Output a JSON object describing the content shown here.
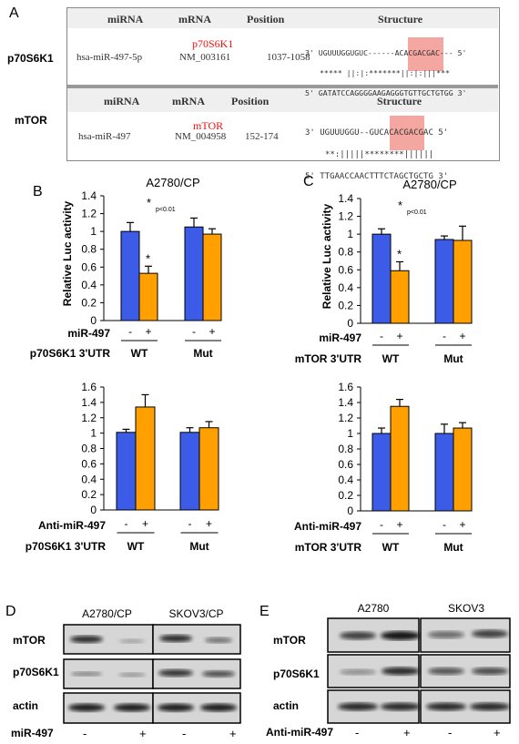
{
  "panels": {
    "A": "A",
    "B": "B",
    "C": "C",
    "D": "D",
    "E": "E"
  },
  "panel_a": {
    "headers": [
      "miRNA",
      "mRNA",
      "Position",
      "Structure"
    ],
    "rows": [
      {
        "gene": "p70S6K1",
        "mirna": "hsa-miR-497-5p",
        "mrna_name": "p70S6K1",
        "mrna_id": "NM_003161",
        "position": "1037-1058",
        "line1": "3' UGUUUGGUGUC------ACACGACGAC--- 5'",
        "line2": "***** ||:|:*******||:|:|||***",
        "line3": "5' GATATCCAGGGGAAGAGGGTGTTGCTGTGG 3'"
      },
      {
        "gene": "mTOR",
        "mirna": "hsa-miR-497",
        "mrna_name": "mTOR",
        "mrna_id": "NM_004958",
        "position": "152-174",
        "line1": "3' UGUUUGGU--GUCACACGACGAC 5'",
        "line2": "**:|||||********||||||",
        "line3": "5' TTGAACCAACTTTCTAGCTGCTG 3'"
      }
    ],
    "highlight_color": "#f4a6a0"
  },
  "colors": {
    "blue": "#3c5ce8",
    "orange": "#ffa000"
  },
  "chart_data": [
    {
      "panel": "B",
      "type": "bar",
      "title": "A2780/CP",
      "ylabel": "Relative Luc activity",
      "ylim": [
        0,
        1.4
      ],
      "ticks": [
        "0",
        "0.2",
        "0.4",
        "0.6",
        "0.8",
        "1",
        "1.2",
        "1.4"
      ],
      "series": [
        {
          "values": [
            1.0,
            1.05
          ]
        },
        {
          "values": [
            0.53,
            0.97
          ]
        }
      ],
      "errors": [
        [
          0.1,
          0.1
        ],
        [
          0.08,
          0.06
        ]
      ],
      "categories": [
        "WT",
        "Mut"
      ],
      "annotations": [
        "*",
        "p<0.01",
        "*"
      ],
      "row1_label": "miR-497",
      "row2_label": "p70S6K1 3'UTR",
      "signs": [
        "-",
        "+",
        "-",
        "+"
      ]
    },
    {
      "panel": "C",
      "type": "bar",
      "title": "A2780/CP",
      "ylabel": "Relative Luc activity",
      "ylim": [
        0,
        1.4
      ],
      "ticks": [
        "0",
        "0.2",
        "0.4",
        "0.6",
        "0.8",
        "1",
        "1.2",
        "1.4"
      ],
      "series": [
        {
          "values": [
            1.0,
            0.94
          ]
        },
        {
          "values": [
            0.59,
            0.93
          ]
        }
      ],
      "errors": [
        [
          0.06,
          0.04
        ],
        [
          0.1,
          0.16
        ]
      ],
      "categories": [
        "WT",
        "Mut"
      ],
      "annotations": [
        "*",
        "p<0.01",
        "*"
      ],
      "row1_label": "miR-497",
      "row2_label": "mTOR 3'UTR",
      "signs": [
        "-",
        "+",
        "-",
        "+"
      ]
    },
    {
      "panel": "B2",
      "type": "bar",
      "title": "",
      "ylabel": "",
      "ylim": [
        0,
        1.6
      ],
      "ticks": [
        "0",
        "0.2",
        "0.4",
        "0.6",
        "0.8",
        "1",
        "1.2",
        "1.4",
        "1.6"
      ],
      "series": [
        {
          "values": [
            1.01,
            1.01
          ]
        },
        {
          "values": [
            1.34,
            1.07
          ]
        }
      ],
      "errors": [
        [
          0.04,
          0.06
        ],
        [
          0.16,
          0.08
        ]
      ],
      "categories": [
        "WT",
        "Mut"
      ],
      "annotations": [],
      "row1_label": "Anti-miR-497",
      "row2_label": "p70S6K1 3'UTR",
      "signs": [
        "-",
        "+",
        "-",
        "+"
      ]
    },
    {
      "panel": "C2",
      "type": "bar",
      "title": "",
      "ylabel": "",
      "ylim": [
        0,
        1.6
      ],
      "ticks": [
        "0",
        "0.2",
        "0.4",
        "0.6",
        "0.8",
        "1",
        "1.2",
        "1.4",
        "1.6"
      ],
      "series": [
        {
          "values": [
            1.0,
            1.0
          ]
        },
        {
          "values": [
            1.35,
            1.07
          ]
        }
      ],
      "errors": [
        [
          0.07,
          0.12
        ],
        [
          0.09,
          0.07
        ]
      ],
      "categories": [
        "WT",
        "Mut"
      ],
      "annotations": [],
      "row1_label": "Anti-miR-497",
      "row2_label": "mTOR 3'UTR",
      "signs": [
        "-",
        "+",
        "-",
        "+"
      ]
    }
  ],
  "panel_d": {
    "groups": [
      "A2780/CP",
      "SKOV3/CP"
    ],
    "rows": [
      "mTOR",
      "p70S6K1",
      "actin"
    ],
    "treat_label": "miR-497",
    "signs": [
      "-",
      "+",
      "-",
      "+"
    ]
  },
  "panel_e": {
    "groups": [
      "A2780",
      "SKOV3"
    ],
    "rows": [
      "mTOR",
      "p70S6K1",
      "actin"
    ],
    "treat_label": "Anti-miR-497",
    "signs": [
      "-",
      "+",
      "-",
      "+"
    ]
  }
}
